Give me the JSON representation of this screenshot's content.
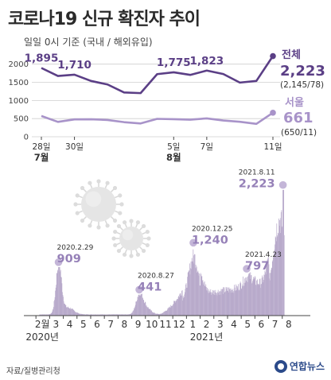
{
  "header": {
    "title": "코로나19 신규 확진자 추이",
    "subtitle": "일일 0시 기준 (국내 / 해외유입)"
  },
  "source": "자료/질병관리청",
  "logo_text": "연합뉴스",
  "colors": {
    "dark": "#5b3f86",
    "light": "#a893c9",
    "bar": "#b8aacb",
    "marker": "#c4b6d8",
    "grid": "#cfcfcf"
  },
  "chart_data": [
    {
      "type": "line",
      "x_labels": [
        "28일",
        "",
        "30일",
        "",
        "",
        "",
        "",
        "",
        "5일",
        "",
        "7일",
        "",
        "",
        "",
        "11일"
      ],
      "month_labels": [
        {
          "index": 0,
          "text": "7월"
        },
        {
          "index": 8,
          "text": "8월"
        }
      ],
      "series": [
        {
          "name": "전체",
          "values": [
            1895,
            1674,
            1710,
            1537,
            1440,
            1219,
            1202,
            1725,
            1775,
            1704,
            1823,
            1728,
            1492,
            1537,
            2223
          ],
          "labels": [
            {
              "index": 0,
              "text": "1,895"
            },
            {
              "index": 2,
              "text": "1,710"
            },
            {
              "index": 8,
              "text": "1,775"
            },
            {
              "index": 10,
              "text": "1,823"
            }
          ],
          "end_value": "2,223",
          "end_detail": "(2,145/78)"
        },
        {
          "name": "서울",
          "values": [
            573,
            409,
            478,
            481,
            462,
            402,
            366,
            493,
            484,
            470,
            506,
            448,
            412,
            354,
            661
          ],
          "end_value": "661",
          "end_detail": "(650/11)"
        }
      ],
      "yticks": [
        0,
        500,
        1000,
        1500,
        2000
      ],
      "ylim": [
        0,
        2300
      ]
    },
    {
      "type": "bar",
      "months": [
        "2월",
        "3",
        "4",
        "5",
        "6",
        "7",
        "8",
        "9",
        "10",
        "11",
        "12",
        "1",
        "2",
        "3",
        "4",
        "5",
        "6",
        "7",
        "8"
      ],
      "year_labels": [
        {
          "index": 0,
          "text": "2020년"
        },
        {
          "index": 12,
          "text": "2021년"
        }
      ],
      "annotations": [
        {
          "date": "2020.2.29",
          "value": "909",
          "month_pos": 1.95
        },
        {
          "date": "2020.8.27",
          "value": "441",
          "month_pos": 7.85
        },
        {
          "date": "2020.12.25",
          "value": "1,240",
          "month_pos": 11.8
        },
        {
          "date": "2021.4.23",
          "value": "797",
          "month_pos": 15.7
        },
        {
          "date": "2021.8.11",
          "value": "2,223",
          "month_pos": 18.35
        }
      ],
      "ylim": [
        0,
        2300
      ]
    }
  ]
}
